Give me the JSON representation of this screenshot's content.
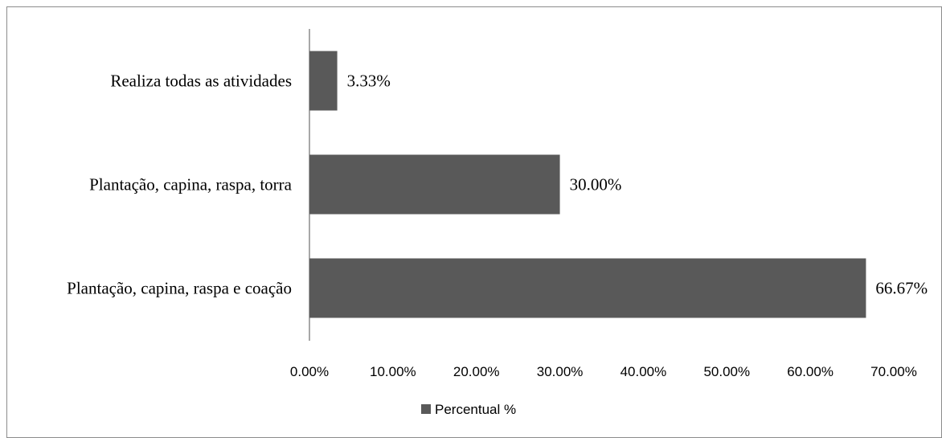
{
  "chart_data": {
    "type": "bar",
    "orientation": "horizontal",
    "categories": [
      "Plantação, capina, raspa e coação",
      "Plantação, capina, raspa, torra",
      "Realiza todas as atividades"
    ],
    "series": [
      {
        "name": "Percentual %",
        "values": [
          66.67,
          30.0,
          3.33
        ],
        "data_labels": [
          "66.67%",
          "30.00%",
          "3.33%"
        ],
        "color": "#595959"
      }
    ],
    "xlim": [
      0,
      70
    ],
    "x_ticks": [
      0,
      10,
      20,
      30,
      40,
      50,
      60,
      70
    ],
    "x_tick_labels": [
      "0.00%",
      "10.00%",
      "20.00%",
      "30.00%",
      "40.00%",
      "50.00%",
      "60.00%",
      "70.00%"
    ],
    "grid": false,
    "legend_position": "bottom",
    "title": "",
    "xlabel": "",
    "ylabel": ""
  }
}
